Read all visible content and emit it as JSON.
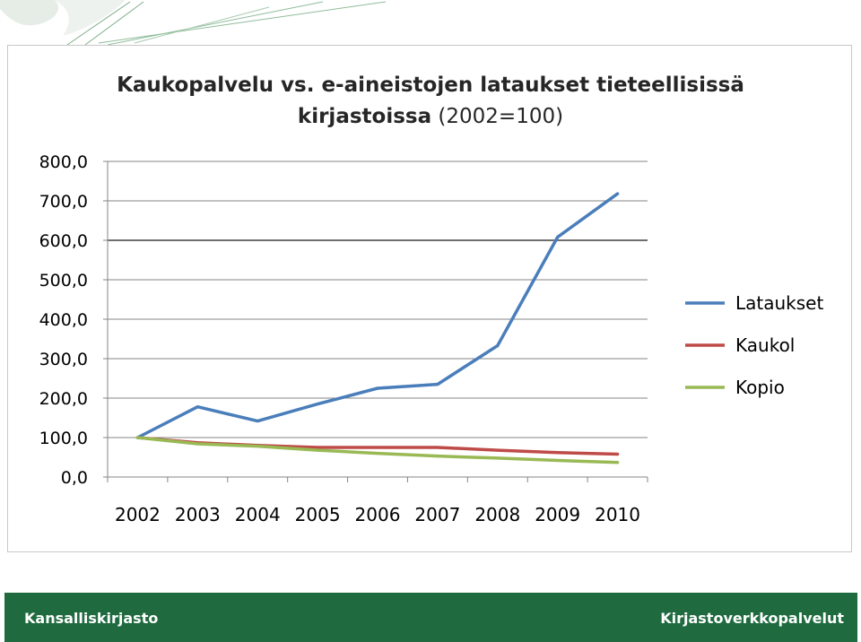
{
  "chart_data": {
    "type": "line",
    "title_line1": "Kaukopalvelu vs. e-aineistojen lataukset tieteellisissä",
    "title_line2_bold": "kirjastoissa",
    "title_line2_normal": " (2002=100)",
    "categories": [
      "2002",
      "2003",
      "2004",
      "2005",
      "2006",
      "2007",
      "2008",
      "2009",
      "2010"
    ],
    "ylim": [
      0,
      800
    ],
    "yticks": [
      "0,0",
      "100,0",
      "200,0",
      "300,0",
      "400,0",
      "500,0",
      "600,0",
      "700,0",
      "800,0"
    ],
    "grid": true,
    "legend_position": "right",
    "series": [
      {
        "name": "Lataukset",
        "color": "#4a7ebb",
        "values": [
          100,
          178,
          142,
          185,
          225,
          235,
          333,
          608,
          718
        ]
      },
      {
        "name": "Kaukol",
        "color": "#be4b48",
        "values": [
          100,
          87,
          80,
          75,
          75,
          75,
          68,
          62,
          58
        ]
      },
      {
        "name": "Kopio",
        "color": "#98b954",
        "values": [
          100,
          84,
          78,
          68,
          60,
          53,
          48,
          42,
          37
        ]
      }
    ]
  },
  "footer": {
    "left": "Kansalliskirjasto",
    "right": "Kirjastoverkkopalvelut"
  },
  "colors": {
    "footer_bg": "#1f6b3f",
    "grid": "#868686",
    "grid_highlight": "#6e6e6e"
  }
}
